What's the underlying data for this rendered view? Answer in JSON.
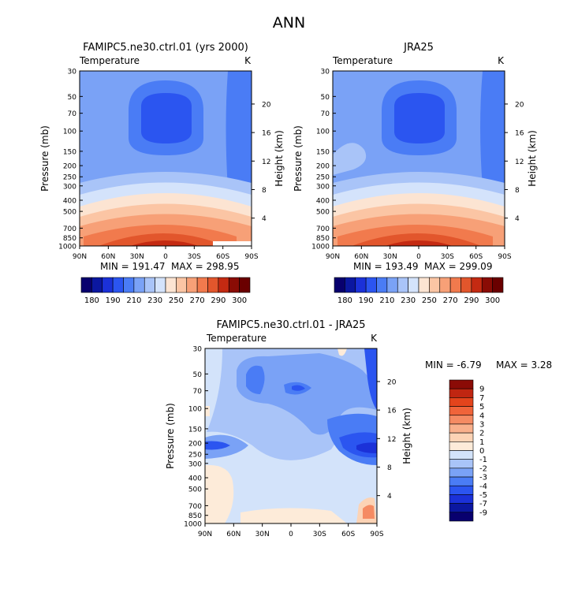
{
  "figure": {
    "title": "ANN",
    "panel_labels": {
      "model": "FAMIPC5.ne30.ctrl.01 (yrs 2000)",
      "obs": "JRA25",
      "diff": "FAMIPC5.ne30.ctrl.01 - JRA25"
    },
    "variable_label": "Temperature",
    "units_label": "K",
    "ylabel_left": "Pressure (mb)",
    "ylabel_right": "Height (km)",
    "pressure_ticks": [
      "30",
      "50",
      "70",
      "100",
      "150",
      "200",
      "250",
      "300",
      "400",
      "500",
      "700",
      "850",
      "1000"
    ],
    "height_ticks": [
      "20",
      "16",
      "12",
      "8",
      "4"
    ],
    "lat_ticks": [
      "90N",
      "60N",
      "30N",
      "0",
      "30S",
      "60S",
      "90S"
    ],
    "diff_lat_ticks": [
      "90N",
      "60N",
      "30N",
      "0",
      "30S",
      "60S",
      "90S"
    ]
  },
  "chart_data": [
    {
      "type": "heatmap",
      "name": "model",
      "title": "FAMIPC5.ne30.ctrl.01 (yrs 2000)",
      "stats": {
        "min_label": "MIN = 191.47",
        "max_label": "MAX = 298.95",
        "min": 191.47,
        "max": 298.95
      },
      "x": [
        "90N",
        "60N",
        "30N",
        "0",
        "30S",
        "60S",
        "90S"
      ],
      "y": [
        "1000",
        "850",
        "700",
        "500",
        "400",
        "300",
        "250",
        "200",
        "150",
        "100",
        "70",
        "50",
        "30"
      ],
      "colorbar_labels": [
        "180",
        "190",
        "210",
        "230",
        "250",
        "270",
        "290",
        "300"
      ],
      "units": "K"
    },
    {
      "type": "heatmap",
      "name": "obs",
      "title": "JRA25",
      "stats": {
        "min_label": "MIN = 193.49",
        "max_label": "MAX = 299.09",
        "min": 193.49,
        "max": 299.09
      },
      "x": [
        "90N",
        "60N",
        "30N",
        "0",
        "30S",
        "60S",
        "90S"
      ],
      "y": [
        "1000",
        "850",
        "700",
        "500",
        "400",
        "300",
        "250",
        "200",
        "150",
        "100",
        "70",
        "50",
        "30"
      ],
      "colorbar_labels": [
        "180",
        "190",
        "210",
        "230",
        "250",
        "270",
        "290",
        "300"
      ],
      "units": "K"
    },
    {
      "type": "heatmap",
      "name": "difference",
      "title": "FAMIPC5.ne30.ctrl.01 - JRA25",
      "stats": {
        "min_label": "MIN = -6.79",
        "max_label": "MAX = 3.28",
        "min": -6.79,
        "max": 3.28
      },
      "x": [
        "90N",
        "60N",
        "30N",
        "0",
        "30S",
        "60S",
        "90S"
      ],
      "y": [
        "1000",
        "850",
        "700",
        "500",
        "400",
        "300",
        "250",
        "200",
        "150",
        "100",
        "70",
        "50",
        "30"
      ],
      "colorbar_labels": [
        "9",
        "7",
        "5",
        "4",
        "3",
        "2",
        "1",
        "0",
        "-1",
        "-2",
        "-3",
        "-4",
        "-5",
        "-7",
        "-9"
      ],
      "units": "K"
    }
  ],
  "colors": {
    "abs_scale": [
      "#08006e",
      "#0b17a0",
      "#1b31d8",
      "#2b55f0",
      "#4a7cf5",
      "#7aa2f6",
      "#a9c4f8",
      "#d4e3fb",
      "#fce4d2",
      "#fbc5a4",
      "#f7a077",
      "#f17a4d",
      "#e2562c",
      "#c42a12",
      "#8a0c05",
      "#6a0000"
    ],
    "diff_scale": [
      "#8b0b06",
      "#c02611",
      "#e3441c",
      "#f0643a",
      "#f58b63",
      "#f9b08c",
      "#fcd3b5",
      "#fdebd9",
      "#d3e3fa",
      "#a9c4f8",
      "#7aa2f6",
      "#4a7cf5",
      "#2b55f0",
      "#1b31d8",
      "#0b17a0",
      "#08006e"
    ]
  }
}
